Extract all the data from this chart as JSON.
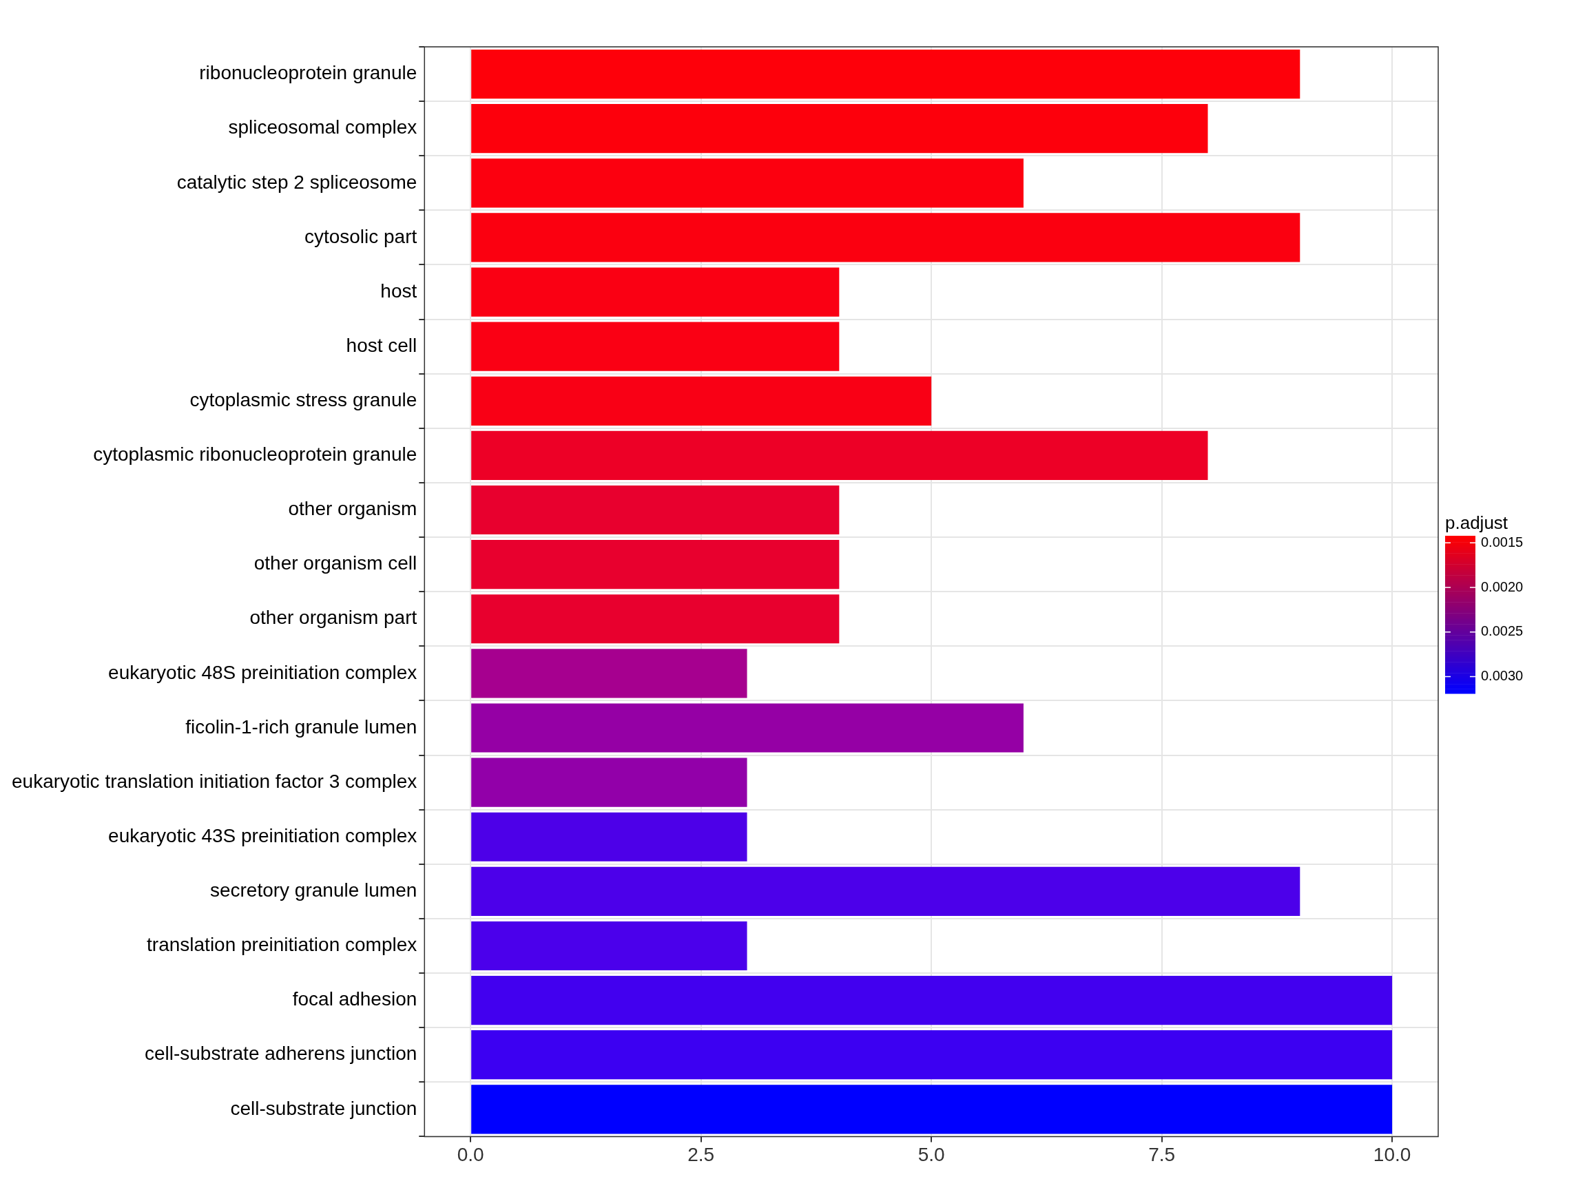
{
  "chart_data": {
    "type": "bar",
    "orientation": "horizontal",
    "categories": [
      "ribonucleoprotein granule",
      "spliceosomal complex",
      "catalytic step 2 spliceosome",
      "cytosolic part",
      "host",
      "host cell",
      "cytoplasmic stress granule",
      "cytoplasmic ribonucleoprotein granule",
      "other organism",
      "other organism cell",
      "other organism part",
      "eukaryotic 48S preinitiation complex",
      "ficolin-1-rich granule lumen",
      "eukaryotic translation initiation factor 3 complex",
      "eukaryotic 43S preinitiation complex",
      "secretory granule lumen",
      "translation preinitiation complex",
      "focal adhesion",
      "cell-substrate adherens junction",
      "cell-substrate junction"
    ],
    "values": [
      9,
      8,
      6,
      9,
      4,
      4,
      5,
      8,
      4,
      4,
      4,
      3,
      6,
      3,
      3,
      9,
      3,
      10,
      10,
      10
    ],
    "colors": [
      "#fe000a",
      "#fd000c",
      "#fc000f",
      "#fb0010",
      "#fa0013",
      "#fa0014",
      "#f90015",
      "#ed0026",
      "#e8002e",
      "#e8002e",
      "#e8002e",
      "#a6008f",
      "#9500a5",
      "#9200a9",
      "#4d00e8",
      "#4c00ea",
      "#4b00eb",
      "#4200ef",
      "#3c00f2",
      "#0000ff"
    ],
    "xlim": [
      -0.5,
      10.5
    ],
    "xticks": [
      {
        "value": 0,
        "label": "0.0"
      },
      2.5,
      {
        "value": 5,
        "label": "5.0"
      },
      7.5,
      {
        "value": 10,
        "label": "10.0"
      }
    ],
    "grid": true,
    "clabel": "p.adjust",
    "clim": [
      0.00142,
      0.00319
    ],
    "cticks": [
      {
        "value": 0.0015,
        "label": "0.0015"
      },
      {
        "value": 0.002,
        "label": "0.0020"
      },
      {
        "value": 0.0025,
        "label": "0.0025"
      },
      {
        "value": 0.003,
        "label": "0.0030"
      }
    ]
  }
}
